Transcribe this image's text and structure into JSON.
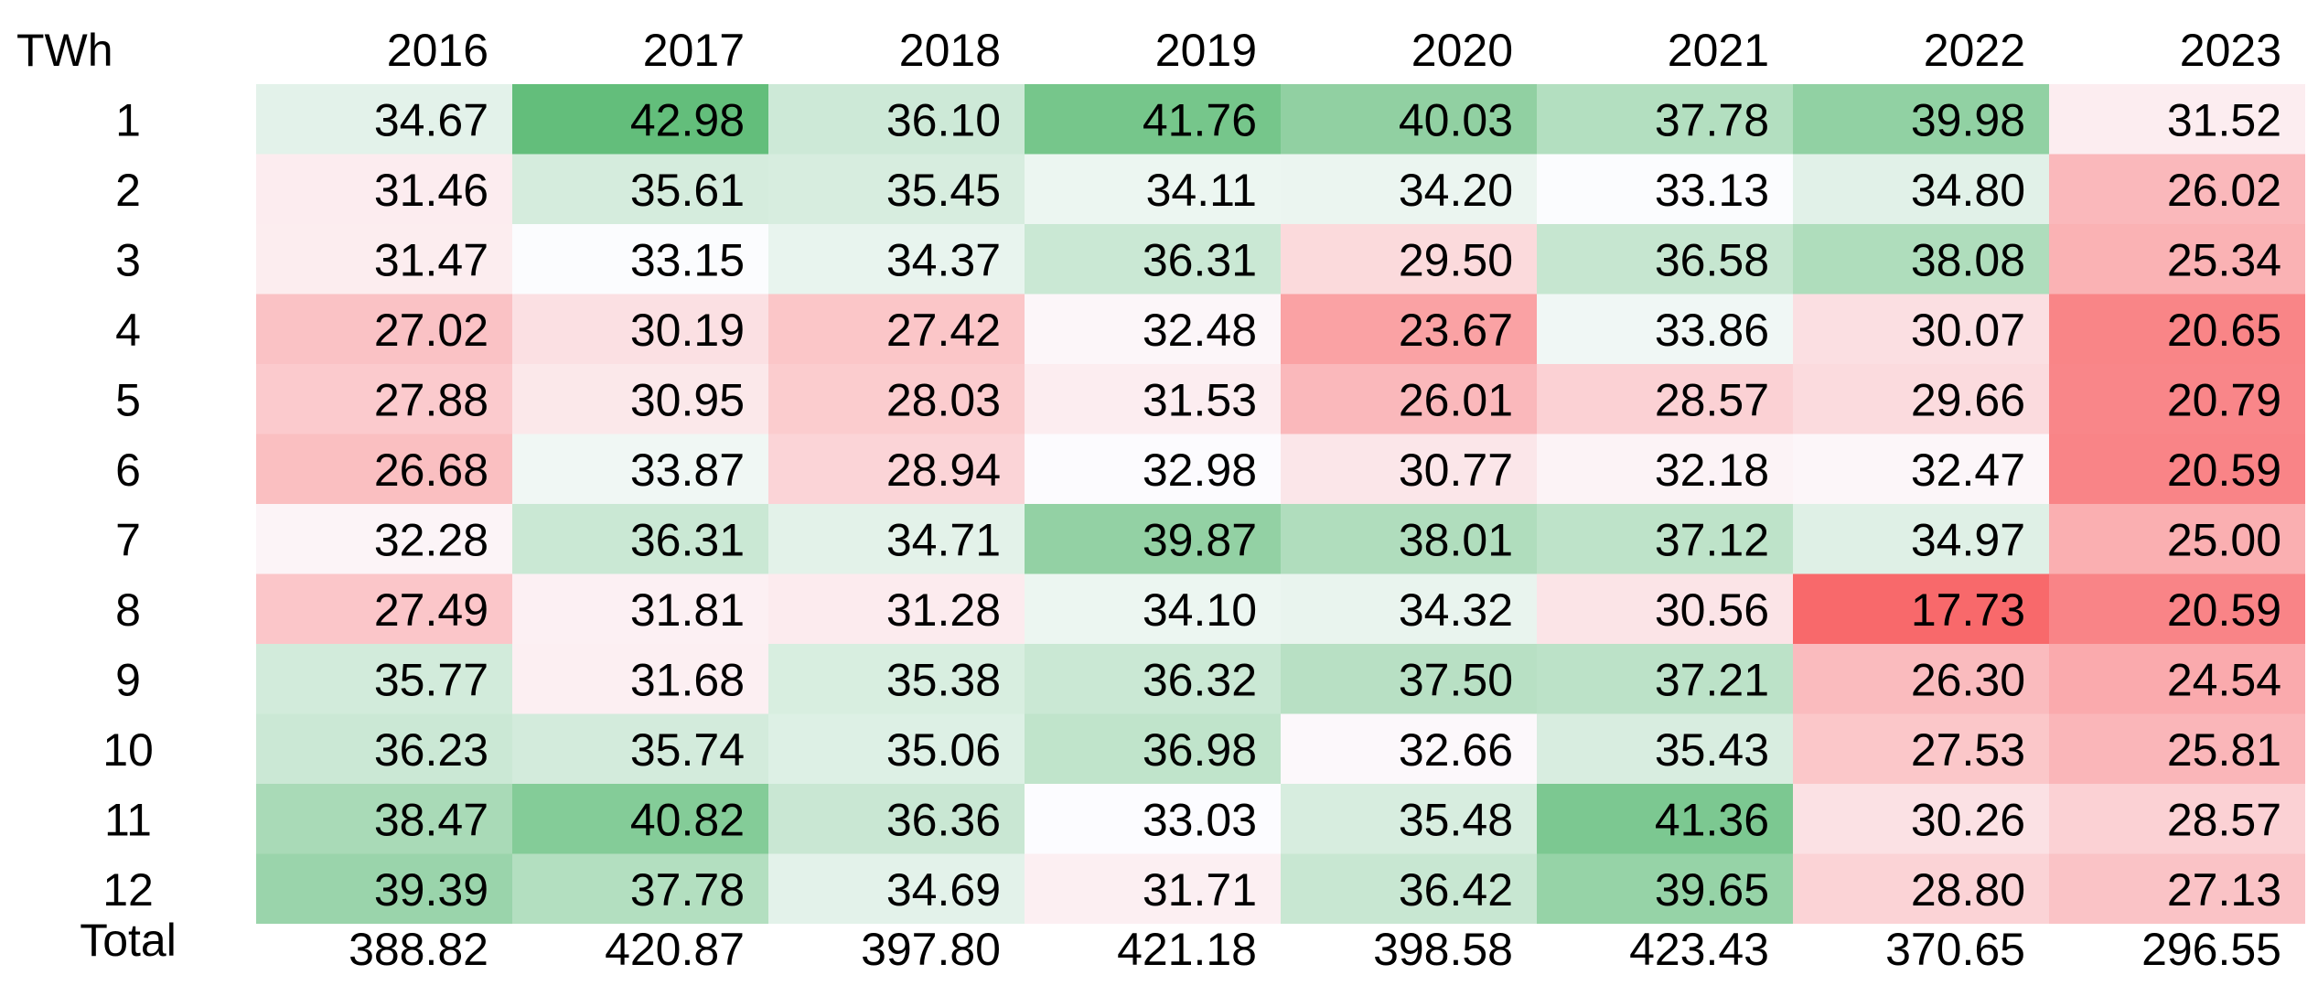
{
  "chart_data": {
    "type": "heatmap",
    "corner_label": "TWh",
    "columns": [
      "2016",
      "2017",
      "2018",
      "2019",
      "2020",
      "2021",
      "2022",
      "2023"
    ],
    "rows": [
      "1",
      "2",
      "3",
      "4",
      "5",
      "6",
      "7",
      "8",
      "9",
      "10",
      "11",
      "12"
    ],
    "values": [
      [
        "34.67",
        "42.98",
        "36.10",
        "41.76",
        "40.03",
        "37.78",
        "39.98",
        "31.52"
      ],
      [
        "31.46",
        "35.61",
        "35.45",
        "34.11",
        "34.20",
        "33.13",
        "34.80",
        "26.02"
      ],
      [
        "31.47",
        "33.15",
        "34.37",
        "36.31",
        "29.50",
        "36.58",
        "38.08",
        "25.34"
      ],
      [
        "27.02",
        "30.19",
        "27.42",
        "32.48",
        "23.67",
        "33.86",
        "30.07",
        "20.65"
      ],
      [
        "27.88",
        "30.95",
        "28.03",
        "31.53",
        "26.01",
        "28.57",
        "29.66",
        "20.79"
      ],
      [
        "26.68",
        "33.87",
        "28.94",
        "32.98",
        "30.77",
        "32.18",
        "32.47",
        "20.59"
      ],
      [
        "32.28",
        "36.31",
        "34.71",
        "39.87",
        "38.01",
        "37.12",
        "34.97",
        "25.00"
      ],
      [
        "27.49",
        "31.81",
        "31.28",
        "34.10",
        "34.32",
        "30.56",
        "17.73",
        "20.59"
      ],
      [
        "35.77",
        "31.68",
        "35.38",
        "36.32",
        "37.50",
        "37.21",
        "26.30",
        "24.54"
      ],
      [
        "36.23",
        "35.74",
        "35.06",
        "36.98",
        "32.66",
        "35.43",
        "27.53",
        "25.81"
      ],
      [
        "38.47",
        "40.82",
        "36.36",
        "33.03",
        "35.48",
        "41.36",
        "30.26",
        "28.57"
      ],
      [
        "39.39",
        "37.78",
        "34.69",
        "31.71",
        "36.42",
        "39.65",
        "28.80",
        "27.13"
      ]
    ],
    "total_label": "Total",
    "totals": [
      "388.82",
      "420.87",
      "397.80",
      "421.18",
      "398.58",
      "423.43",
      "370.65",
      "296.55"
    ],
    "color_scale": {
      "low": "#f8696b",
      "mid": "#fcfcff",
      "high": "#63be7b"
    }
  }
}
